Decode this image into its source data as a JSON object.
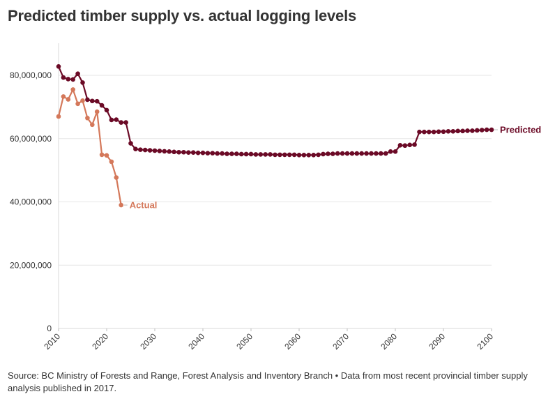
{
  "chart_data": {
    "type": "line",
    "title": "Predicted timber supply vs. actual logging levels",
    "source": "Source: BC Ministry of Forests and Range, Forest Analysis and Inventory Branch • Data from most recent provincial timber supply analysis published in 2017.",
    "xlabel": "",
    "ylabel": "",
    "xlim": [
      2010,
      2100
    ],
    "ylim": [
      0,
      90000000
    ],
    "x_ticks": [
      2010,
      2020,
      2030,
      2040,
      2050,
      2060,
      2070,
      2080,
      2090,
      2100
    ],
    "y_ticks": [
      0,
      20000000,
      40000000,
      60000000,
      80000000
    ],
    "y_tick_labels": [
      "0",
      "20,000,000",
      "40,000,000",
      "60,000,000",
      "80,000,000"
    ],
    "grid": true,
    "series": [
      {
        "name": "Predicted",
        "color": "#6b0a26",
        "x": [
          2010,
          2011,
          2012,
          2013,
          2014,
          2015,
          2016,
          2017,
          2018,
          2019,
          2020,
          2021,
          2022,
          2023,
          2024,
          2025,
          2026,
          2027,
          2028,
          2029,
          2030,
          2031,
          2032,
          2033,
          2034,
          2035,
          2036,
          2037,
          2038,
          2039,
          2040,
          2041,
          2042,
          2043,
          2044,
          2045,
          2046,
          2047,
          2048,
          2049,
          2050,
          2051,
          2052,
          2053,
          2054,
          2055,
          2056,
          2057,
          2058,
          2059,
          2060,
          2061,
          2062,
          2063,
          2064,
          2065,
          2066,
          2067,
          2068,
          2069,
          2070,
          2071,
          2072,
          2073,
          2074,
          2075,
          2076,
          2077,
          2078,
          2079,
          2080,
          2081,
          2082,
          2083,
          2084,
          2085,
          2086,
          2087,
          2088,
          2089,
          2090,
          2091,
          2092,
          2093,
          2094,
          2095,
          2096,
          2097,
          2098,
          2099,
          2100
        ],
        "values": [
          82800000,
          79300000,
          78800000,
          78700000,
          80500000,
          77700000,
          72300000,
          71900000,
          71800000,
          70500000,
          69000000,
          65900000,
          66000000,
          65100000,
          65100000,
          58500000,
          56700000,
          56500000,
          56400000,
          56300000,
          56200000,
          56100000,
          56000000,
          55900000,
          55800000,
          55700000,
          55700000,
          55600000,
          55600000,
          55500000,
          55500000,
          55400000,
          55400000,
          55300000,
          55300000,
          55200000,
          55200000,
          55200000,
          55100000,
          55100000,
          55100000,
          55000000,
          55000000,
          55000000,
          55000000,
          54900000,
          54900000,
          54900000,
          54900000,
          54900000,
          54800000,
          54800000,
          54800000,
          54800000,
          54900000,
          55100000,
          55200000,
          55200000,
          55300000,
          55300000,
          55300000,
          55300000,
          55300000,
          55300000,
          55300000,
          55300000,
          55300000,
          55300000,
          55300000,
          55900000,
          55900000,
          57900000,
          57800000,
          58000000,
          58100000,
          62100000,
          62100000,
          62100000,
          62100000,
          62200000,
          62200000,
          62300000,
          62300000,
          62400000,
          62400000,
          62500000,
          62500000,
          62600000,
          62700000,
          62800000,
          62800000
        ],
        "label": "Predicted"
      },
      {
        "name": "Actual",
        "color": "#d4785a",
        "x": [
          2010,
          2011,
          2012,
          2013,
          2014,
          2015,
          2016,
          2017,
          2018,
          2019,
          2020,
          2021,
          2022,
          2023
        ],
        "values": [
          67000000,
          73300000,
          72400000,
          75500000,
          71000000,
          72000000,
          66500000,
          64400000,
          68500000,
          54900000,
          54700000,
          52700000,
          47700000,
          39000000
        ],
        "label": "Actual"
      }
    ]
  }
}
